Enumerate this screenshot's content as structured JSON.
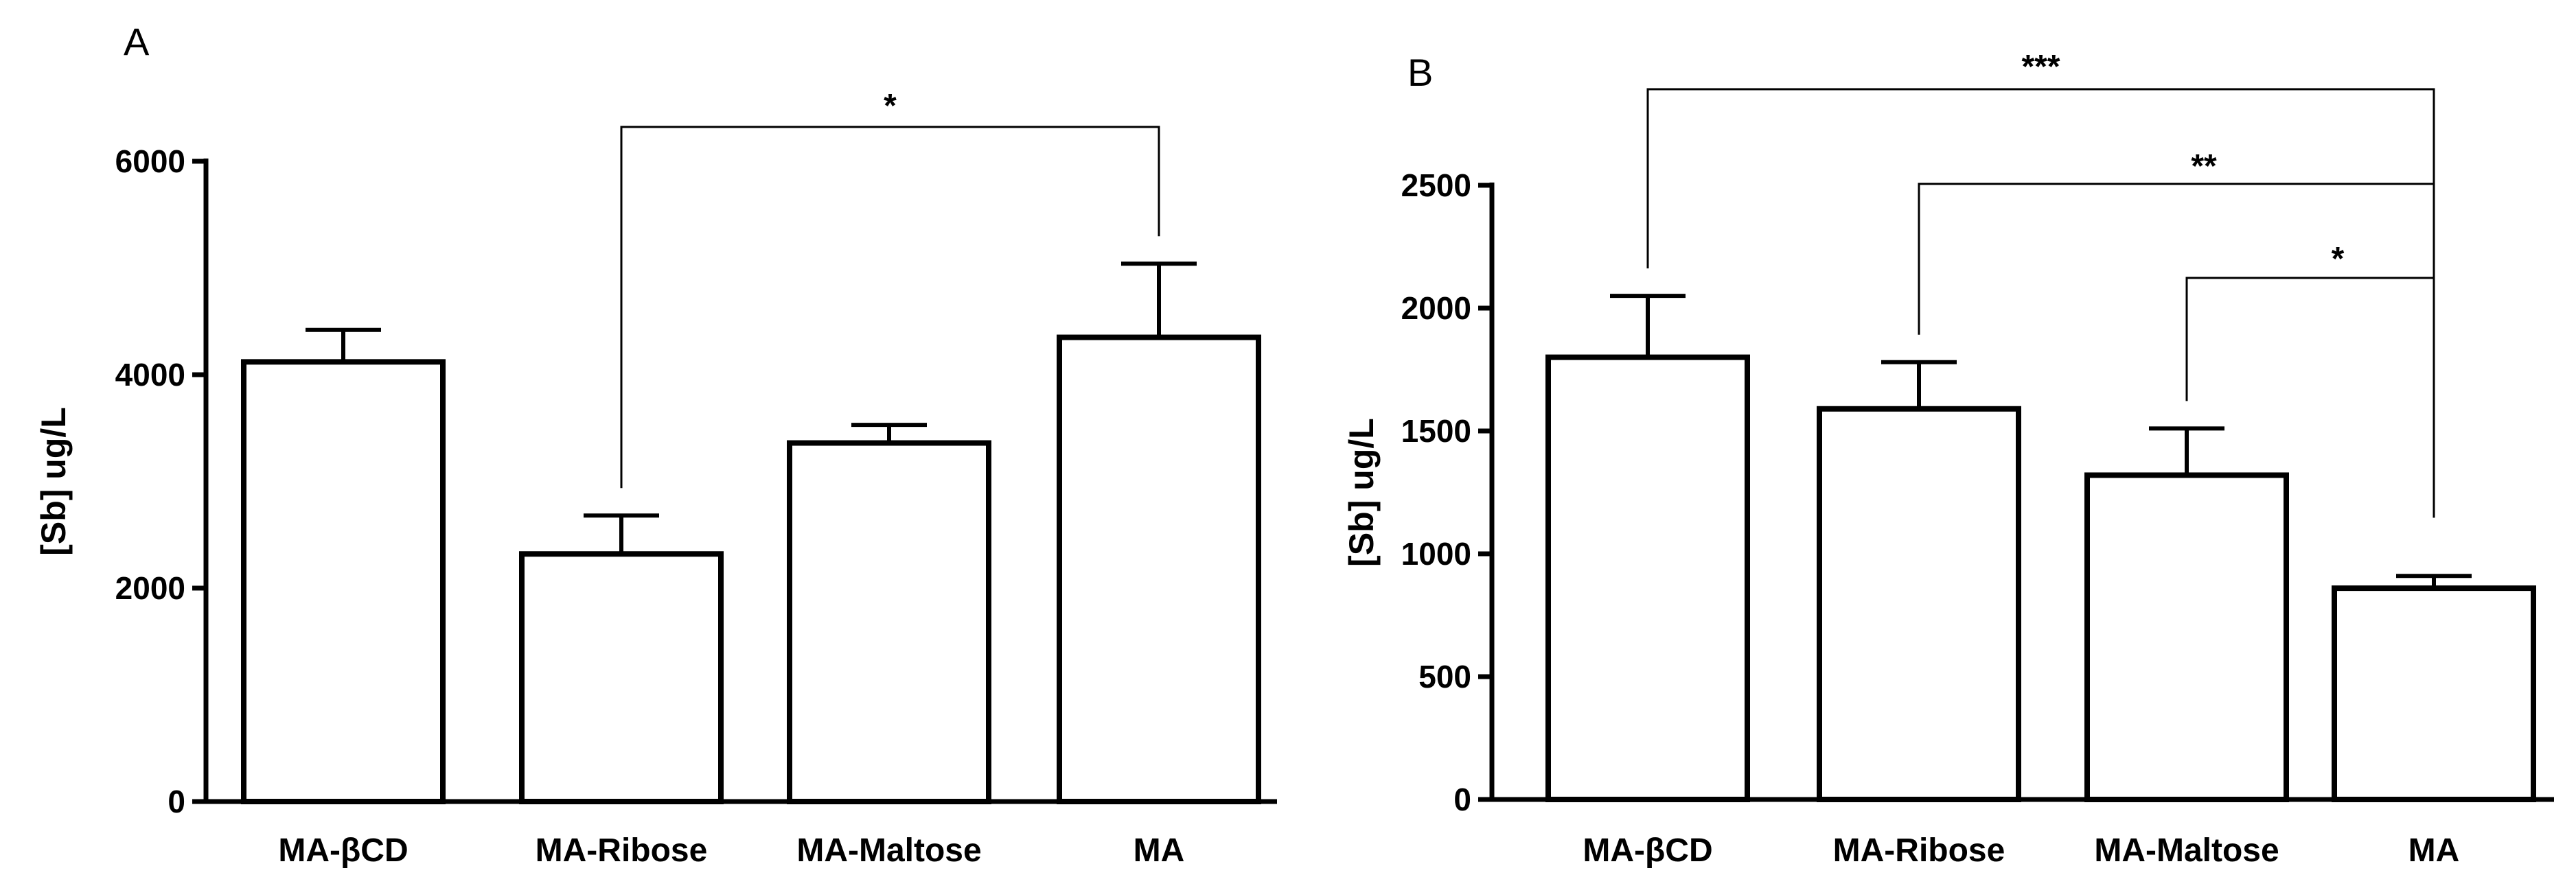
{
  "chart_data": [
    {
      "type": "bar",
      "panel_label": "A",
      "title": "",
      "xlabel": "",
      "ylabel": "[Sb] ug/L",
      "ylim": [
        0,
        6000
      ],
      "yticks": [
        0,
        2000,
        4000,
        6000
      ],
      "ytick_labels": [
        "0",
        "2000",
        "4000",
        "6000"
      ],
      "categories": [
        "MA-βCD",
        "MA-Ribose",
        "MA-Maltose",
        "MA"
      ],
      "values": [
        4120,
        2320,
        3360,
        4350
      ],
      "errors": [
        300,
        360,
        170,
        690
      ],
      "significance": [
        {
          "from": 1,
          "to": 3,
          "label": "*"
        }
      ]
    },
    {
      "type": "bar",
      "panel_label": "B",
      "title": "",
      "xlabel": "",
      "ylabel": "[Sb] ug/L",
      "ylim": [
        0,
        2500
      ],
      "yticks": [
        0,
        500,
        1000,
        1500,
        2000,
        2500
      ],
      "ytick_labels": [
        "0",
        "500",
        "1000",
        "1500",
        "2000",
        "2500"
      ],
      "categories": [
        "MA-βCD",
        "MA-Ribose",
        "MA-Maltose",
        "MA"
      ],
      "values": [
        1800,
        1590,
        1320,
        860
      ],
      "errors": [
        250,
        190,
        190,
        50
      ],
      "significance": [
        {
          "from": 0,
          "to": 3,
          "label": "***"
        },
        {
          "from": 1,
          "to": 3,
          "label": "**"
        },
        {
          "from": 2,
          "to": 3,
          "label": "*"
        }
      ]
    }
  ]
}
